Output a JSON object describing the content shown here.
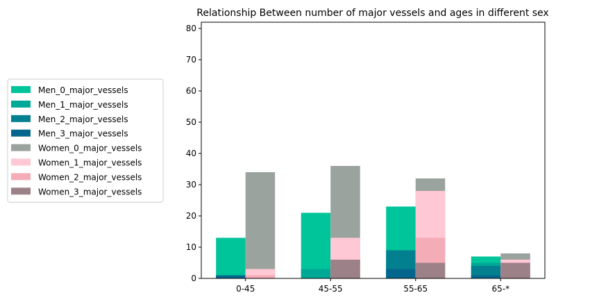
{
  "chart_data": {
    "type": "bar",
    "stacked": true,
    "title": "Relationship Between number of major vessels and ages in different sex",
    "xlabel": "",
    "ylabel": "",
    "categories": [
      "0-45",
      "45-55",
      "55-65",
      "65-*"
    ],
    "ylim": [
      0,
      82
    ],
    "yticks": [
      0,
      10,
      20,
      30,
      40,
      50,
      60,
      70,
      80
    ],
    "grid": false,
    "legend_position": "left",
    "series": [
      {
        "name": "Men_0_major_vessels",
        "group": "Men",
        "color": "#00c49a",
        "values": [
          13,
          21,
          23,
          7
        ]
      },
      {
        "name": "Men_1_major_vessels",
        "group": "Men",
        "color": "#00a896",
        "values": [
          1,
          3,
          5,
          5
        ]
      },
      {
        "name": "Men_2_major_vessels",
        "group": "Men",
        "color": "#02808f",
        "values": [
          0,
          0,
          9,
          4
        ]
      },
      {
        "name": "Men_3_major_vessels",
        "group": "Men",
        "color": "#05668d",
        "values": [
          1,
          0,
          3,
          1
        ]
      },
      {
        "name": "Women_0_major_vessels",
        "group": "Women",
        "color": "#9ba39e",
        "values": [
          34,
          36,
          32,
          8
        ]
      },
      {
        "name": "Women_1_major_vessels",
        "group": "Women",
        "color": "#ffc8d4",
        "values": [
          3,
          13,
          28,
          6
        ]
      },
      {
        "name": "Women_2_major_vessels",
        "group": "Women",
        "color": "#f4acb7",
        "values": [
          1,
          6,
          13,
          5
        ]
      },
      {
        "name": "Women_3_major_vessels",
        "group": "Women",
        "color": "#9d8189",
        "values": [
          0,
          6,
          5,
          5
        ]
      }
    ]
  }
}
